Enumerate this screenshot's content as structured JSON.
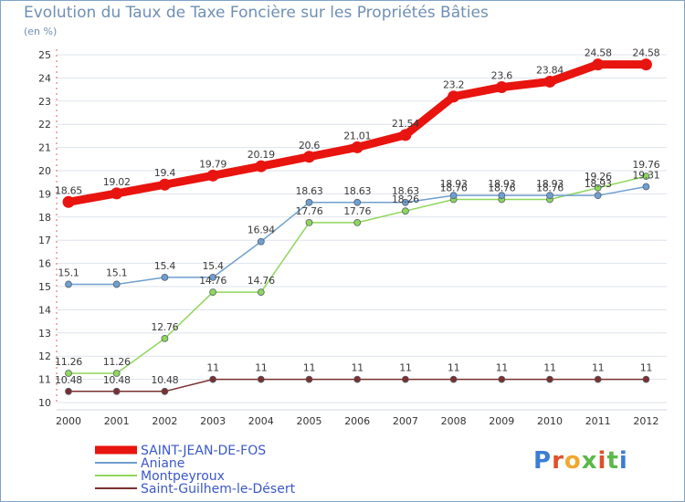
{
  "page": {
    "title": "Evolution du Taux de Taxe Foncière sur les Propriétés Bâties",
    "unit": "(en %)",
    "logo_letters": [
      "P",
      "r",
      "o",
      "x",
      "i",
      "t",
      "i"
    ],
    "logo_colors": [
      "#3b7dd8",
      "#e0502a",
      "#f0a830",
      "#5cb84a",
      "#e0502a",
      "#5cb84a",
      "#3b7dd8"
    ]
  },
  "chart_data": {
    "type": "line",
    "title": "Evolution du Taux de Taxe Foncière sur les Propriétés Bâties",
    "ylabel": "(en %)",
    "xlabel": "",
    "ylim": [
      10,
      25
    ],
    "yticks": [
      "10",
      "11",
      "12",
      "13",
      "14",
      "15",
      "16",
      "17",
      "18",
      "19",
      "20",
      "21",
      "22",
      "23",
      "24",
      "25"
    ],
    "x": [
      "2000",
      "2001",
      "2002",
      "2003",
      "2004",
      "2005",
      "2006",
      "2007",
      "2008",
      "2009",
      "2010",
      "2011",
      "2012"
    ],
    "grid": "horizontal",
    "legend_position": "bottom-left",
    "series": [
      {
        "name": "SAINT-JEAN-DE-FOS",
        "color": "#e8140f",
        "values": [
          18.65,
          19.02,
          19.4,
          19.79,
          20.19,
          20.6,
          21.01,
          21.54,
          23.2,
          23.6,
          23.84,
          24.58,
          24.58
        ],
        "labels": [
          "18.65",
          "19.02",
          "19.4",
          "19.79",
          "20.19",
          "20.6",
          "21.01",
          "21.54",
          "23.2",
          "23.6",
          "23.84",
          "24.58",
          "24.58"
        ]
      },
      {
        "name": "Aniane",
        "color": "#6f9fcf",
        "values": [
          15.1,
          15.1,
          15.4,
          15.4,
          16.94,
          18.63,
          18.63,
          18.63,
          18.93,
          18.93,
          18.93,
          18.93,
          19.31
        ],
        "labels": [
          "15.1",
          "15.1",
          "15.4",
          "15.4",
          "16.94",
          "18.63",
          "18.63",
          "18.63",
          "18.93",
          "18.93",
          "18.93",
          "18.93",
          "19.31"
        ]
      },
      {
        "name": "Montpeyroux",
        "color": "#8fd65a",
        "values": [
          11.26,
          11.26,
          12.76,
          14.76,
          14.76,
          17.76,
          17.76,
          18.26,
          18.76,
          18.76,
          18.76,
          19.26,
          19.76
        ],
        "labels": [
          "11.26",
          "11.26",
          "12.76",
          "14.76",
          "14.76",
          "17.76",
          "17.76",
          "18.26",
          "18.76",
          "18.76",
          "18.76",
          "19.26",
          "19.76"
        ]
      },
      {
        "name": "Saint-Guilhem-le-Désert",
        "color": "#7a3030",
        "values": [
          10.48,
          10.48,
          10.48,
          11,
          11,
          11,
          11,
          11,
          11,
          11,
          11,
          11,
          11
        ],
        "labels": [
          "10.48",
          "10.48",
          "10.48",
          "11",
          "11",
          "11",
          "11",
          "11",
          "11",
          "11",
          "11",
          "11",
          "11"
        ]
      }
    ]
  }
}
